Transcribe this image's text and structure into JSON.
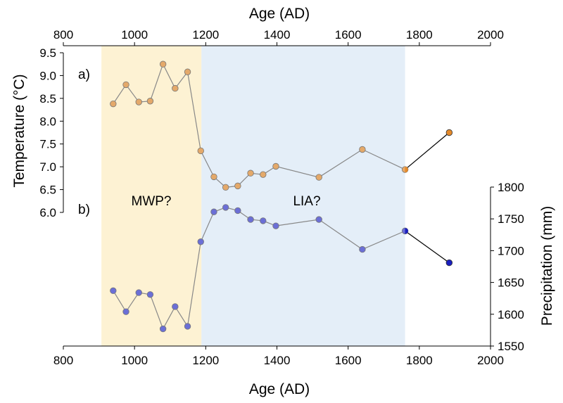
{
  "chart_data": {
    "type": "line",
    "title": "",
    "xlabel_top": "Age (AD)",
    "xlabel_bottom": "Age (AD)",
    "ylabel_left": "Temperature (°C)",
    "ylabel_right": "Precipitation (mm)",
    "xlim": [
      800,
      2000
    ],
    "x_ticks": [
      "800",
      "1000",
      "1200",
      "1400",
      "1600",
      "1800",
      "2000"
    ],
    "x_tick_values": [
      800,
      1000,
      1200,
      1400,
      1600,
      1800,
      2000
    ],
    "temp_ylim": [
      6.0,
      9.5
    ],
    "temp_ticks": [
      "6.0",
      "6.5",
      "7.0",
      "7.5",
      "8.0",
      "8.5",
      "9.0",
      "9.5"
    ],
    "temp_tick_values": [
      6.0,
      6.5,
      7.0,
      7.5,
      8.0,
      8.5,
      9.0,
      9.5
    ],
    "precip_ylim": [
      1550,
      1800
    ],
    "precip_ticks": [
      "1550",
      "1600",
      "1650",
      "1700",
      "1750",
      "1800"
    ],
    "precip_tick_values": [
      1550,
      1600,
      1650,
      1700,
      1750,
      1800
    ],
    "shaded_periods": [
      {
        "label": "MWP?",
        "start": 907,
        "end": 1188,
        "color": "#fdf2d3"
      },
      {
        "label": "LIA?",
        "start": 1188,
        "end": 1760,
        "color": "#e4eef8"
      }
    ],
    "panel_labels": [
      {
        "label": "a)",
        "series": "temperature"
      },
      {
        "label": "b)",
        "series": "precipitation"
      }
    ],
    "series": [
      {
        "name": "Temperature",
        "axis": "left",
        "x": [
          940,
          976,
          1012,
          1044,
          1080,
          1114,
          1149,
          1186,
          1223,
          1256,
          1290,
          1326,
          1361,
          1397,
          1518,
          1640,
          1760
        ],
        "values": [
          8.38,
          8.8,
          8.42,
          8.44,
          9.25,
          8.72,
          9.08,
          7.35,
          6.78,
          6.55,
          6.58,
          6.86,
          6.83,
          7.01,
          6.77,
          7.38,
          6.94
        ],
        "color": "#e4a96a",
        "extension": {
          "x": [
            1760,
            1884
          ],
          "values": [
            6.94,
            7.75
          ],
          "color": "#e58a2a"
        }
      },
      {
        "name": "Precipitation",
        "axis": "right",
        "x": [
          940,
          976,
          1012,
          1044,
          1080,
          1114,
          1149,
          1186,
          1223,
          1256,
          1290,
          1326,
          1361,
          1397,
          1518,
          1640,
          1760
        ],
        "values": [
          1637,
          1604,
          1634,
          1631,
          1577,
          1612,
          1581,
          1714,
          1761,
          1768,
          1763,
          1749,
          1747,
          1739,
          1749,
          1702,
          1731
        ],
        "color": "#6b6fd6",
        "extension": {
          "x": [
            1760,
            1884
          ],
          "values": [
            1731,
            1681
          ],
          "color": "#1a1fbf"
        }
      }
    ],
    "line_color": "#888888"
  }
}
